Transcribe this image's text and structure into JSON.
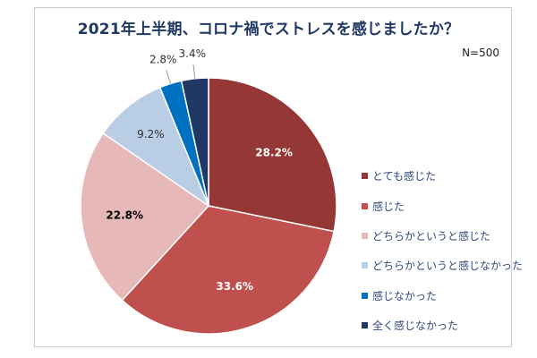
{
  "title": "2021年上半期、コロナ禍でストレスを感じましたか？",
  "sample_size": "N=500",
  "chart_data": {
    "type": "pie",
    "title": "2021年上半期、コロナ禍でストレスを感じましたか？",
    "categories": [
      "とても感じた",
      "感じた",
      "どちらかというと感じた",
      "どちらかというと感じなかった",
      "感じなかった",
      "全く感じなかった"
    ],
    "values": [
      28.2,
      33.6,
      22.8,
      9.2,
      2.8,
      3.4
    ],
    "labels": [
      "28.2%",
      "33.6%",
      "22.8%",
      "9.2%",
      "2.8%",
      "3.4%"
    ],
    "colors": [
      "#953735",
      "#c0504d",
      "#e6b9b8",
      "#b9cde5",
      "#0070c0",
      "#1f3864"
    ],
    "label_colors": [
      "#ffffff",
      "#ffffff",
      "#000000",
      "#333333",
      "#333333",
      "#333333"
    ],
    "legend_position": "right"
  }
}
